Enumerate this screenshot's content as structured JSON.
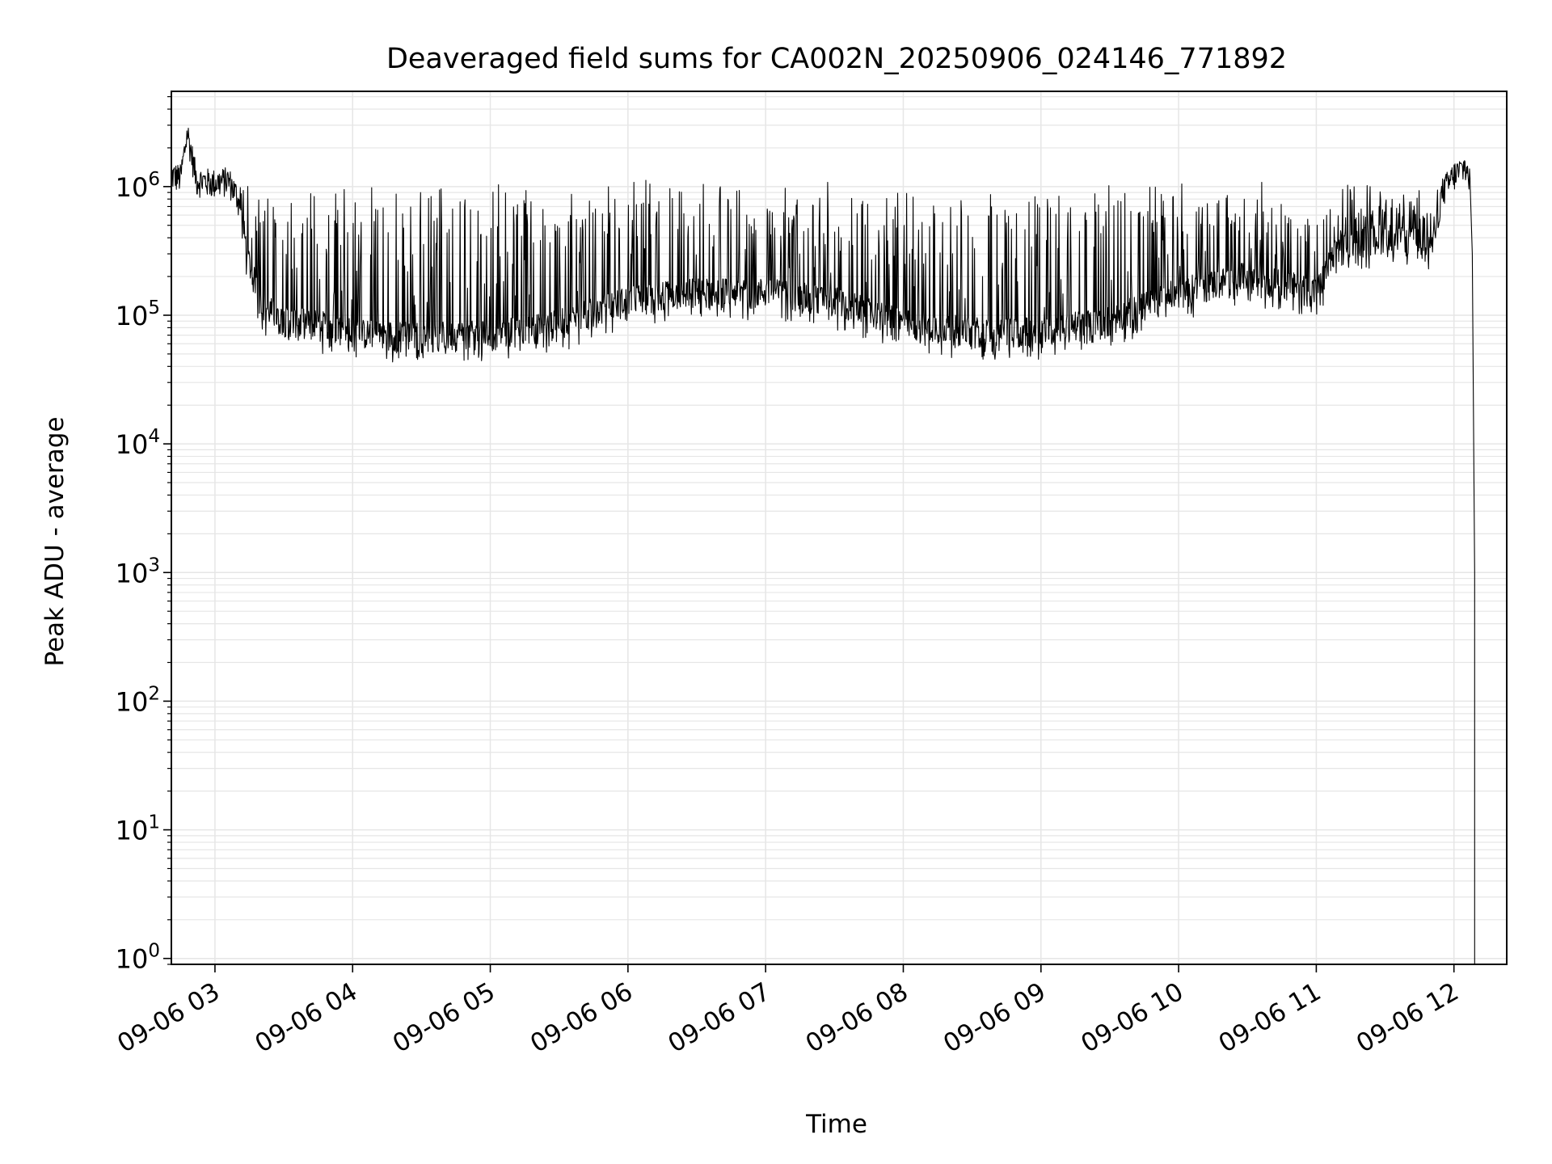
{
  "chart_data": {
    "type": "line",
    "title": "Deaveraged field sums for CA002N_20250906_024146_771892",
    "xlabel": "Time",
    "ylabel": "Peak ADU - average",
    "yscale": "log",
    "grid": true,
    "grid_minor": true,
    "ylim": [
      0.9,
      5500000
    ],
    "xlim": [
      "09-06 02:41",
      "09-06 12:23"
    ],
    "x_ticks": [
      {
        "time": "09-06 03:00",
        "label": "09-06 03"
      },
      {
        "time": "09-06 04:00",
        "label": "09-06 04"
      },
      {
        "time": "09-06 05:00",
        "label": "09-06 05"
      },
      {
        "time": "09-06 06:00",
        "label": "09-06 06"
      },
      {
        "time": "09-06 07:00",
        "label": "09-06 07"
      },
      {
        "time": "09-06 08:00",
        "label": "09-06 08"
      },
      {
        "time": "09-06 09:00",
        "label": "09-06 09"
      },
      {
        "time": "09-06 10:00",
        "label": "09-06 10"
      },
      {
        "time": "09-06 11:00",
        "label": "09-06 11"
      },
      {
        "time": "09-06 12:00",
        "label": "09-06 12"
      }
    ],
    "y_ticks": [
      {
        "value": 1,
        "base": "10",
        "exp": "0"
      },
      {
        "value": 10,
        "base": "10",
        "exp": "1"
      },
      {
        "value": 100,
        "base": "10",
        "exp": "2"
      },
      {
        "value": 1000,
        "base": "10",
        "exp": "3"
      },
      {
        "value": 10000,
        "base": "10",
        "exp": "4"
      },
      {
        "value": 100000,
        "base": "10",
        "exp": "5"
      },
      {
        "value": 1000000,
        "base": "10",
        "exp": "6"
      }
    ],
    "series_color": "#000000",
    "grid_color": "#e6e6e6",
    "series": [
      {
        "points": [
          [
            "09-06 02:41",
            1200000
          ],
          [
            "09-06 02:45",
            1150000
          ],
          [
            "09-06 02:48",
            2600000
          ],
          [
            "09-06 02:52",
            1100000
          ],
          [
            "09-06 03:00",
            1050000
          ],
          [
            "09-06 03:06",
            1100000
          ],
          [
            "09-06 03:10",
            800000
          ],
          [
            "09-06 03:15",
            250000
          ],
          [
            "09-06 03:20",
            120000
          ],
          [
            "09-06 03:30",
            90000
          ],
          [
            "09-06 03:45",
            85000
          ],
          [
            "09-06 04:00",
            72000
          ],
          [
            "09-06 04:30",
            68000
          ],
          [
            "09-06 05:00",
            70000
          ],
          [
            "09-06 05:30",
            85000
          ],
          [
            "09-06 06:00",
            130000
          ],
          [
            "09-06 06:30",
            150000
          ],
          [
            "09-06 07:00",
            150000
          ],
          [
            "09-06 07:30",
            130000
          ],
          [
            "09-06 08:00",
            85000
          ],
          [
            "09-06 08:30",
            75000
          ],
          [
            "09-06 09:00",
            75000
          ],
          [
            "09-06 09:30",
            90000
          ],
          [
            "09-06 10:00",
            150000
          ],
          [
            "09-06 10:30",
            200000
          ],
          [
            "09-06 11:00",
            150000
          ],
          [
            "09-06 11:10",
            350000
          ],
          [
            "09-06 11:30",
            400000
          ],
          [
            "09-06 11:50",
            350000
          ],
          [
            "09-06 11:55",
            900000
          ],
          [
            "09-06 12:00",
            1200000
          ],
          [
            "09-06 12:05",
            1400000
          ],
          [
            "09-06 12:07",
            1100000
          ],
          [
            "09-06 12:08",
            300000
          ],
          [
            "09-06 12:09",
            1000
          ],
          [
            "09-06 12:09",
            0.9
          ]
        ],
        "noise_spike_max": 1000000
      }
    ]
  }
}
